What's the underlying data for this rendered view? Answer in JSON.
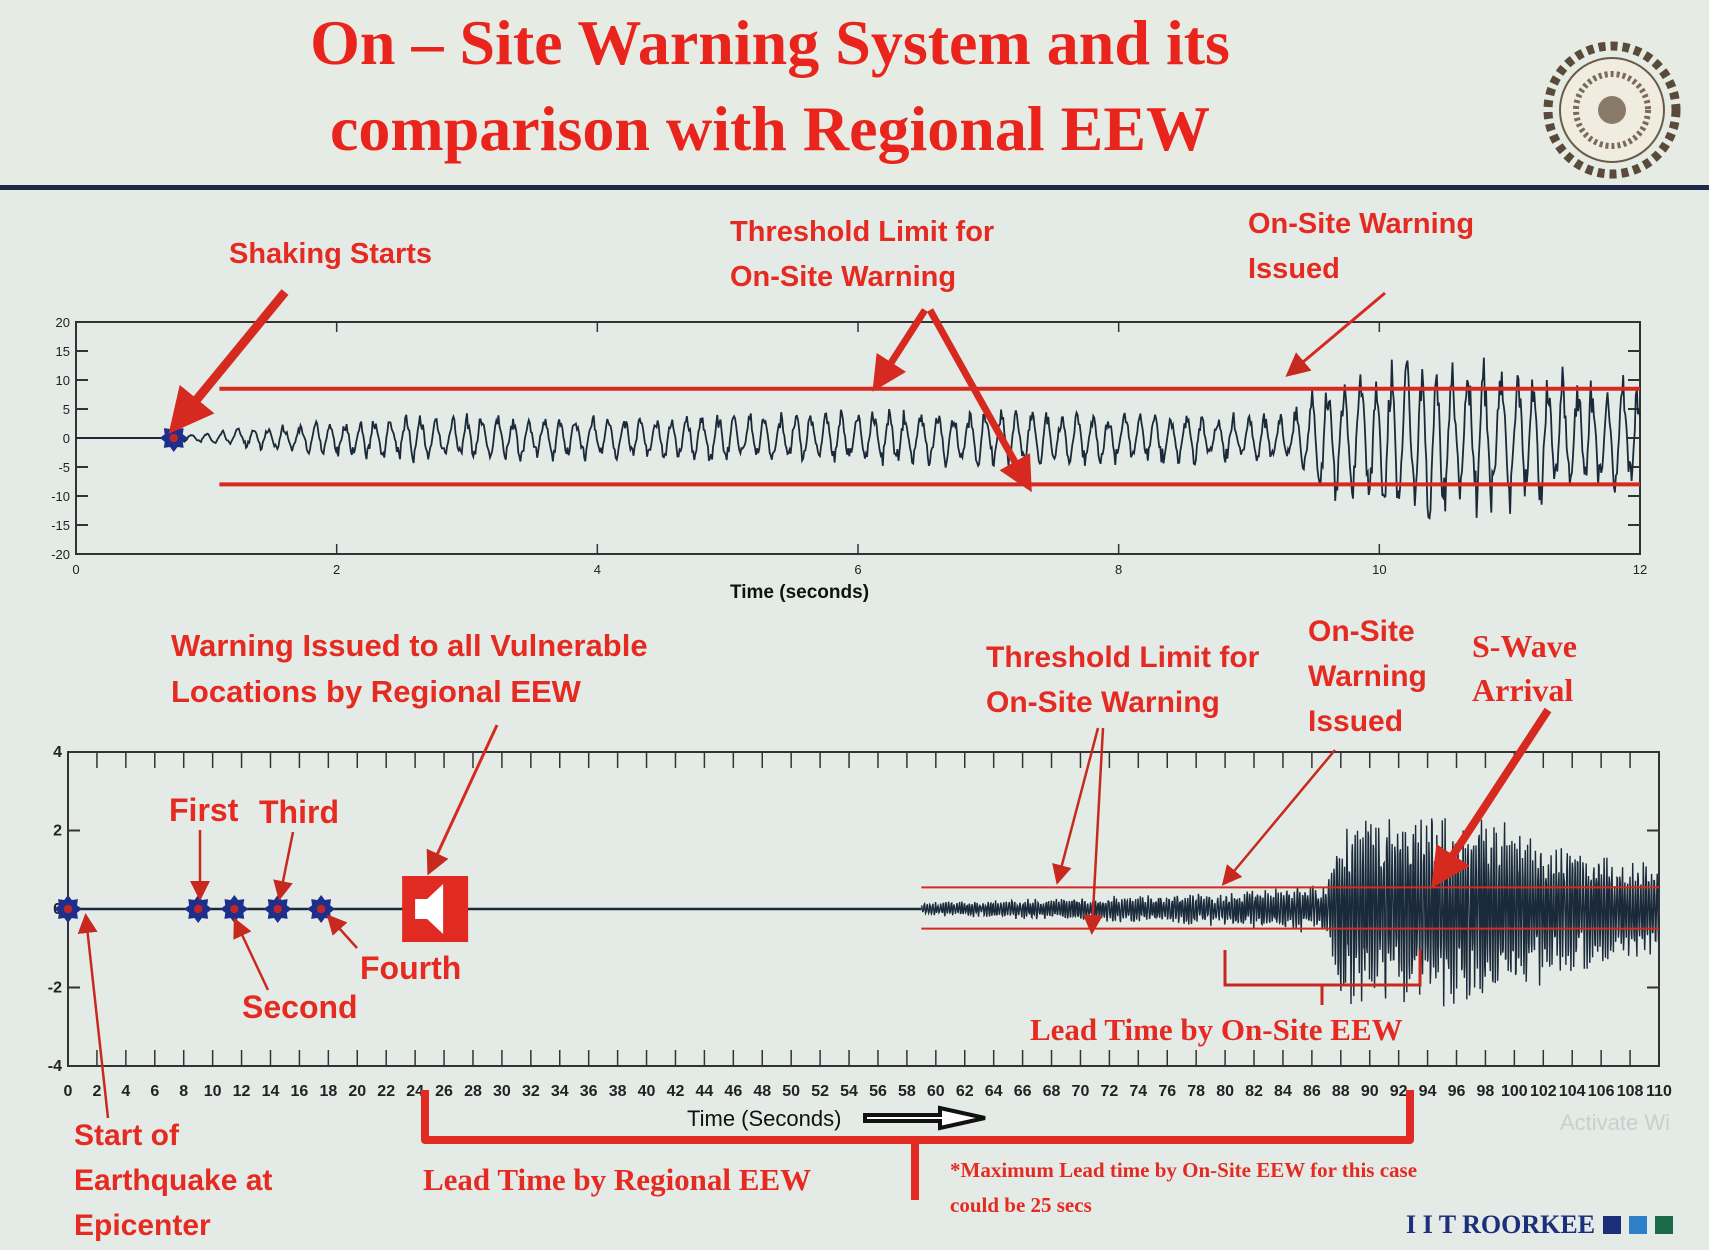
{
  "slide": {
    "title_line1": "On – Site Warning System and its",
    "title_line2": "comparison with Regional EEW",
    "brand": "I I T ROORKEE",
    "watermark": "Activate Wi",
    "colors": {
      "accent": "#e52a22",
      "trace": "#1a2a3a",
      "marker": "#1d2f8a",
      "brand": "#1b2f7a"
    }
  },
  "top_annotations": {
    "shaking_starts": "Shaking Starts",
    "threshold_1": "Threshold Limit for",
    "threshold_2": "On-Site Warning",
    "onsite_1": "On-Site Warning",
    "onsite_2": "Issued"
  },
  "bottom_annotations": {
    "regional_1": "Warning Issued to all Vulnerable",
    "regional_2": "Locations by Regional EEW",
    "threshold_1": "Threshold Limit for",
    "threshold_2": "On-Site Warning",
    "onsite_1": "On-Site",
    "onsite_2": "Warning",
    "onsite_3": "Issued",
    "swave_1": "S-Wave",
    "swave_2": "Arrival",
    "first": "First",
    "second": "Second",
    "third": "Third",
    "fourth": "Fourth",
    "start_1": "Start of",
    "start_2": "Earthquake at",
    "start_3": "Epicenter",
    "lead_onsite": "Lead Time by On-Site EEW",
    "lead_regional": "Lead Time by Regional EEW",
    "note_1": "*Maximum Lead time by On-Site EEW for this case",
    "note_2": "could be 25 secs"
  },
  "chart_data": [
    {
      "type": "line",
      "xlabel": "Time (seconds)",
      "ylabel": "",
      "xlim": [
        0,
        12
      ],
      "ylim": [
        -20,
        20
      ],
      "xticks": [
        0,
        2,
        4,
        6,
        8,
        10,
        12
      ],
      "yticks": [
        20,
        15,
        10,
        5,
        0,
        -5,
        -10,
        -15,
        -20
      ],
      "threshold_upper": 8.5,
      "threshold_lower": -8,
      "shaking_start": 0.75,
      "onsite_warning_time": 9.4,
      "trace_envelope": [
        [
          0.75,
          0.5
        ],
        [
          2.4,
          4
        ],
        [
          4.5,
          4
        ],
        [
          7,
          5
        ],
        [
          9.3,
          4
        ],
        [
          9.5,
          10
        ],
        [
          10.4,
          14
        ],
        [
          12,
          10
        ]
      ]
    },
    {
      "type": "line",
      "xlabel": "Time (Seconds)",
      "ylabel": "",
      "xlim": [
        0,
        110
      ],
      "ylim": [
        -4,
        4
      ],
      "xticks": [
        0,
        2,
        4,
        6,
        8,
        10,
        12,
        14,
        16,
        18,
        20,
        22,
        24,
        26,
        28,
        30,
        32,
        34,
        36,
        38,
        40,
        42,
        44,
        46,
        48,
        50,
        52,
        54,
        56,
        58,
        60,
        62,
        64,
        66,
        68,
        70,
        72,
        74,
        76,
        78,
        80,
        82,
        84,
        86,
        88,
        90,
        92,
        94,
        96,
        98,
        100,
        102,
        104,
        106,
        108,
        110
      ],
      "yticks": [
        4,
        2,
        0,
        -2,
        -4
      ],
      "threshold_upper": 0.55,
      "threshold_lower": -0.5,
      "threshold_start": 59,
      "stations": [
        0,
        9,
        11.5,
        14.5,
        17.5
      ],
      "regional_warning_time": 24,
      "onsite_warning_time": 80,
      "swave_arrival": 94,
      "trace_envelope": [
        [
          59,
          0.15
        ],
        [
          70,
          0.3
        ],
        [
          80,
          0.4
        ],
        [
          87,
          0.6
        ],
        [
          88,
          2.2
        ],
        [
          94,
          2.5
        ],
        [
          100,
          2
        ],
        [
          110,
          1
        ]
      ]
    }
  ]
}
